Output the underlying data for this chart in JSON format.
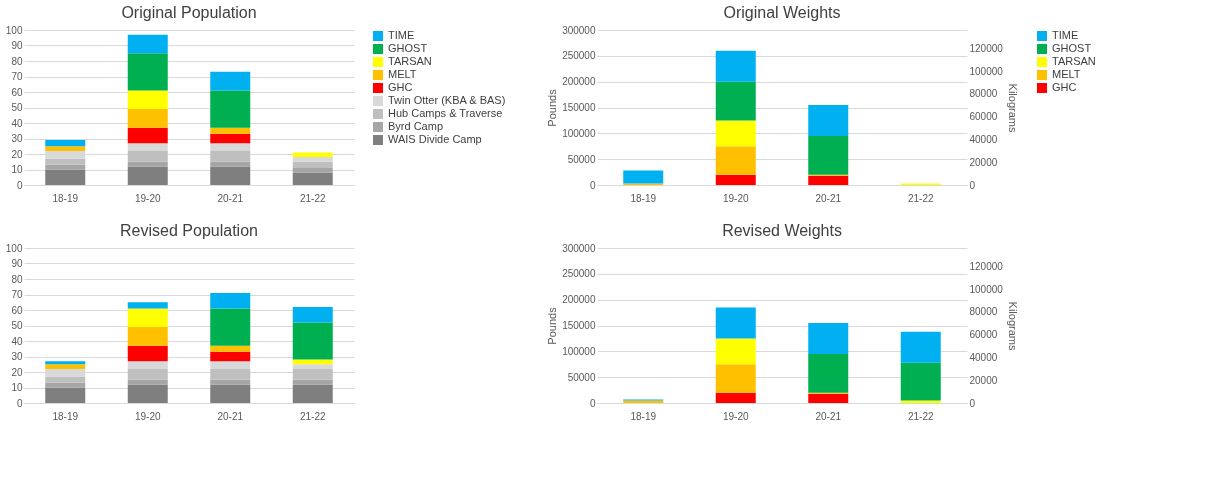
{
  "chart_data": [
    {
      "type": "bar",
      "title": "Original Population",
      "stacked": true,
      "categories": [
        "18-19",
        "19-20",
        "20-21",
        "21-22"
      ],
      "ylim": [
        0,
        100
      ],
      "yticks": [
        0,
        10,
        20,
        30,
        40,
        50,
        60,
        70,
        80,
        90,
        100
      ],
      "grid": "y",
      "legend": "right",
      "series": [
        {
          "name": "WAIS Divide Camp",
          "color": "#7f7f7f",
          "values": [
            10,
            12,
            12,
            8
          ]
        },
        {
          "name": "Byrd Camp",
          "color": "#a6a6a6",
          "values": [
            3,
            3,
            3,
            3
          ]
        },
        {
          "name": "Hub Camps & Traverse",
          "color": "#bfbfbf",
          "values": [
            4,
            7,
            7,
            4
          ]
        },
        {
          "name": "Twin Otter (KBA & BAS)",
          "color": "#d9d9d9",
          "values": [
            5,
            5,
            5,
            3
          ]
        },
        {
          "name": "GHC",
          "color": "#ff0000",
          "values": [
            0,
            10,
            6,
            0
          ]
        },
        {
          "name": "MELT",
          "color": "#ffc000",
          "values": [
            3,
            12,
            4,
            0
          ]
        },
        {
          "name": "TARSAN",
          "color": "#ffff00",
          "values": [
            0,
            12,
            0,
            3
          ]
        },
        {
          "name": "GHOST",
          "color": "#00b050",
          "values": [
            0,
            24,
            24,
            0
          ]
        },
        {
          "name": "TIME",
          "color": "#00b0f0",
          "values": [
            4,
            12,
            12,
            0
          ]
        }
      ]
    },
    {
      "type": "bar",
      "title": "Original Weights",
      "stacked": true,
      "categories": [
        "18-19",
        "19-20",
        "20-21",
        "21-22"
      ],
      "ylabel": "Pounds",
      "y2label": "Kilograms",
      "ylim": [
        0,
        300000
      ],
      "yticks": [
        0,
        50000,
        100000,
        150000,
        200000,
        250000,
        300000
      ],
      "y2lim": [
        0,
        136000
      ],
      "y2ticks": [
        0,
        20000,
        40000,
        60000,
        80000,
        100000,
        120000
      ],
      "grid": "y",
      "legend": "right",
      "series": [
        {
          "name": "GHC",
          "color": "#ff0000",
          "values": [
            0,
            20000,
            18000,
            0
          ]
        },
        {
          "name": "MELT",
          "color": "#ffc000",
          "values": [
            3000,
            55000,
            2000,
            0
          ]
        },
        {
          "name": "TARSAN",
          "color": "#ffff00",
          "values": [
            0,
            50000,
            0,
            3000
          ]
        },
        {
          "name": "GHOST",
          "color": "#00b050",
          "values": [
            0,
            75000,
            75000,
            0
          ]
        },
        {
          "name": "TIME",
          "color": "#00b0f0",
          "values": [
            25000,
            60000,
            60000,
            0
          ]
        }
      ]
    },
    {
      "type": "bar",
      "title": "Revised Population",
      "stacked": true,
      "categories": [
        "18-19",
        "19-20",
        "20-21",
        "21-22"
      ],
      "ylim": [
        0,
        100
      ],
      "yticks": [
        0,
        10,
        20,
        30,
        40,
        50,
        60,
        70,
        80,
        90,
        100
      ],
      "grid": "y",
      "legend": false,
      "series": [
        {
          "color": "#7f7f7f",
          "values": [
            10,
            12,
            12,
            12
          ]
        },
        {
          "color": "#a6a6a6",
          "values": [
            3,
            3,
            3,
            3
          ]
        },
        {
          "color": "#bfbfbf",
          "values": [
            4,
            7,
            7,
            7
          ]
        },
        {
          "color": "#d9d9d9",
          "values": [
            5,
            5,
            5,
            3
          ]
        },
        {
          "color": "#ff0000",
          "values": [
            0,
            10,
            6,
            0
          ]
        },
        {
          "color": "#ffc000",
          "values": [
            3,
            12,
            4,
            0
          ]
        },
        {
          "color": "#ffff00",
          "values": [
            0,
            12,
            0,
            3
          ]
        },
        {
          "color": "#00b050",
          "values": [
            0,
            0,
            24,
            24
          ]
        },
        {
          "color": "#00b0f0",
          "values": [
            2,
            4,
            10,
            10
          ]
        }
      ]
    },
    {
      "type": "bar",
      "title": "Revised Weights",
      "stacked": true,
      "categories": [
        "18-19",
        "19-20",
        "20-21",
        "21-22"
      ],
      "ylabel": "Pounds",
      "y2label": "Kilograms",
      "ylim": [
        0,
        300000
      ],
      "yticks": [
        0,
        50000,
        100000,
        150000,
        200000,
        250000,
        300000
      ],
      "y2lim": [
        0,
        136000
      ],
      "y2ticks": [
        0,
        20000,
        40000,
        60000,
        80000,
        100000,
        120000
      ],
      "grid": "y",
      "legend": false,
      "series": [
        {
          "color": "#ff0000",
          "values": [
            0,
            20000,
            18000,
            0
          ]
        },
        {
          "color": "#ffc000",
          "values": [
            5000,
            55000,
            2000,
            0
          ]
        },
        {
          "color": "#ffff00",
          "values": [
            0,
            50000,
            0,
            5000
          ]
        },
        {
          "color": "#00b050",
          "values": [
            0,
            0,
            75000,
            73000
          ]
        },
        {
          "color": "#00b0f0",
          "values": [
            2000,
            60000,
            60000,
            60000
          ]
        }
      ]
    }
  ]
}
